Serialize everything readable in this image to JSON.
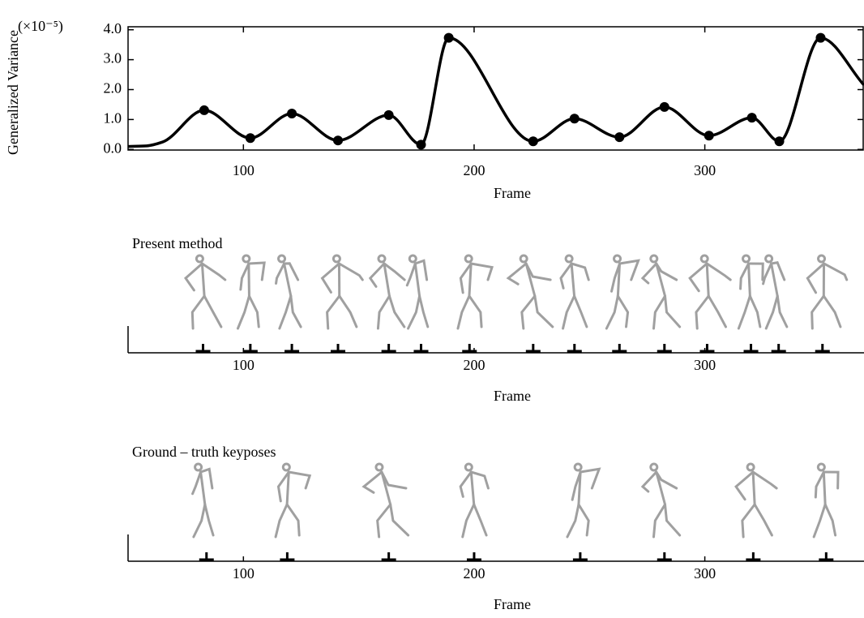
{
  "chart_data": [
    {
      "type": "line",
      "ylabel": "Generalized Variance",
      "annotation": "(×10⁻⁵)",
      "xlabel": "Frame",
      "xlim": [
        50,
        369
      ],
      "xticks": [
        100,
        200,
        300
      ],
      "ylim": [
        -0.02,
        4.1
      ],
      "yticks": [
        {
          "value": 0,
          "label": "0.0"
        },
        {
          "value": 1,
          "label": "1.0"
        },
        {
          "value": 2,
          "label": "2.0"
        },
        {
          "value": 3,
          "label": "3.0"
        },
        {
          "value": 4,
          "label": "4.0"
        }
      ],
      "series": [
        {
          "color": "#000000",
          "x": [
            50,
            58,
            65,
            83,
            103,
            121,
            141,
            163,
            177,
            189,
            225.6,
            243.5,
            263,
            282.5,
            301.8,
            320.4,
            332.3,
            350.2,
            369
          ],
          "values": [
            0.1,
            0.12,
            0.25,
            1.31,
            0.38,
            1.2,
            0.3,
            1.15,
            0.16,
            3.73,
            0.27,
            1.03,
            0.41,
            1.42,
            0.46,
            1.06,
            0.27,
            3.73,
            2.15
          ]
        },
        {
          "color": "#000000",
          "markers": true,
          "x": [
            83,
            103,
            121,
            141,
            163,
            177,
            189,
            225.6,
            243.5,
            263,
            282.5,
            301.8,
            320.4,
            332.3,
            350.2
          ],
          "values": [
            1.31,
            0.38,
            1.2,
            0.3,
            1.15,
            0.16,
            3.73,
            0.27,
            1.03,
            0.41,
            1.42,
            0.46,
            1.06,
            0.27,
            3.73
          ]
        }
      ]
    },
    {
      "type": "timeline",
      "title": "Present method",
      "xlabel": "Frame",
      "xlim": [
        50,
        369
      ],
      "xticks": [
        100,
        200,
        300
      ],
      "keyframes": [
        82.5,
        103,
        121,
        141,
        163,
        177,
        198,
        225.6,
        243.5,
        263,
        282.5,
        301,
        320,
        332,
        351
      ]
    },
    {
      "type": "timeline",
      "title": "Ground – truth keyposes",
      "xlabel": "Frame",
      "xlim": [
        50,
        369
      ],
      "xticks": [
        100,
        200,
        300
      ],
      "keyframes": [
        84,
        119,
        163,
        200,
        246,
        282.5,
        321,
        352.6
      ]
    }
  ]
}
